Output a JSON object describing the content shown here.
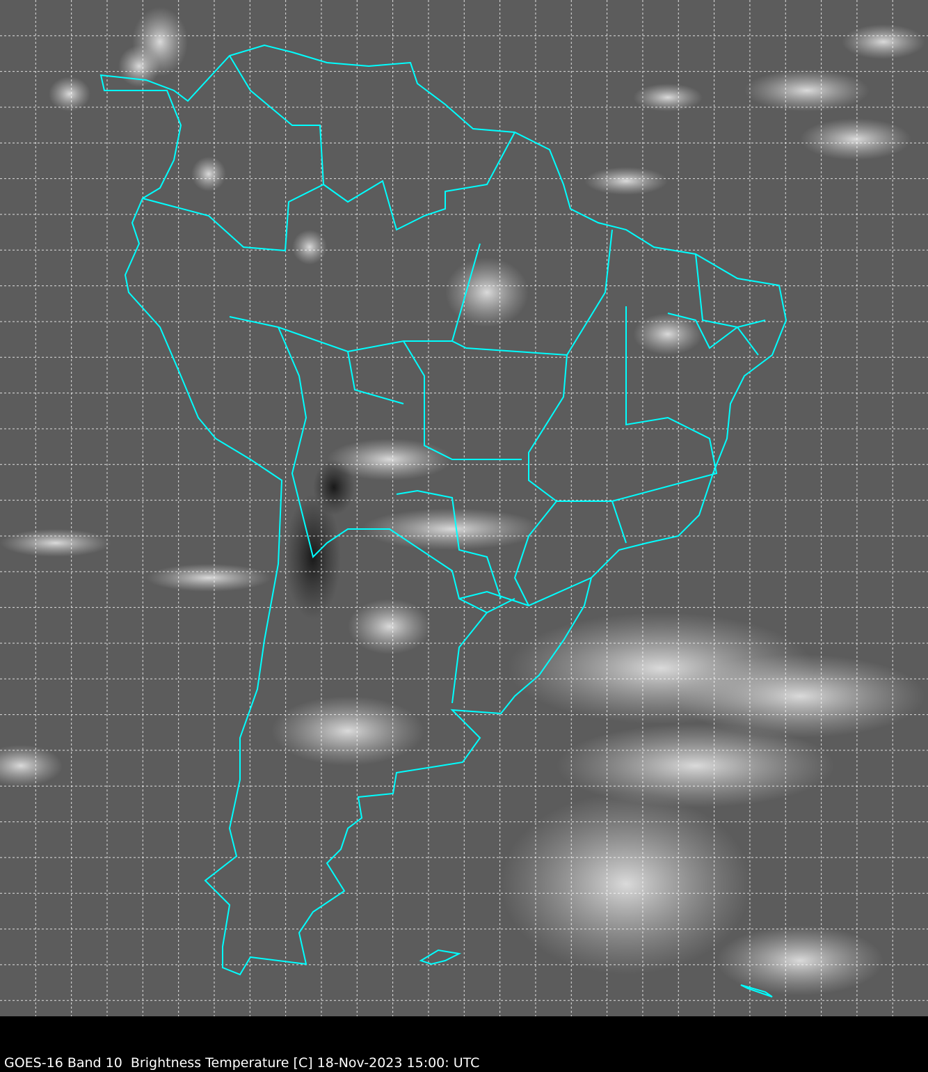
{
  "caption": "GOES-16 Band 10  Brightness Temperature [C] 18-Nov-2023 15:00: UTC",
  "colors": {
    "border_lines": "#00ffff",
    "grid": "#ffffff",
    "background": "#000000"
  },
  "map": {
    "region": "South America",
    "product": "infrared brightness temperature grayscale",
    "graticule": true
  }
}
